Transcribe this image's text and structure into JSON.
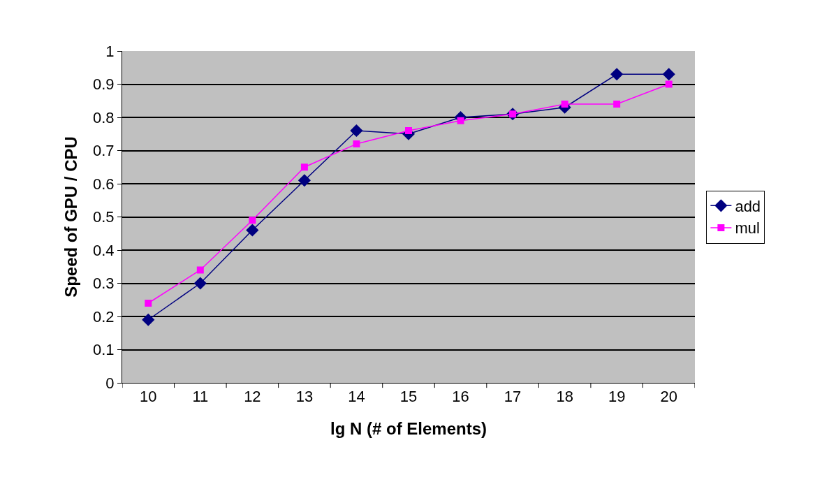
{
  "chart_data": {
    "type": "line",
    "xlabel": "lg N (# of Elements)",
    "ylabel": "Speed of GPU / CPU",
    "categories": [
      "10",
      "11",
      "12",
      "13",
      "14",
      "15",
      "16",
      "17",
      "18",
      "19",
      "20"
    ],
    "series": [
      {
        "name": "add",
        "color": "#000080",
        "marker": "diamond",
        "values": [
          0.19,
          0.3,
          0.46,
          0.61,
          0.76,
          0.75,
          0.8,
          0.81,
          0.83,
          0.93,
          0.93
        ]
      },
      {
        "name": "mul",
        "color": "#ff00ff",
        "marker": "square",
        "values": [
          0.24,
          0.34,
          0.49,
          0.65,
          0.72,
          0.76,
          0.79,
          0.81,
          0.84,
          0.84,
          0.9
        ]
      }
    ],
    "ylim": [
      0,
      1
    ],
    "yticks": [
      0,
      0.1,
      0.2,
      0.3,
      0.4,
      0.5,
      0.6,
      0.7,
      0.8,
      0.9,
      1
    ],
    "grid": "y",
    "legend": "right",
    "line_style": "solid"
  }
}
